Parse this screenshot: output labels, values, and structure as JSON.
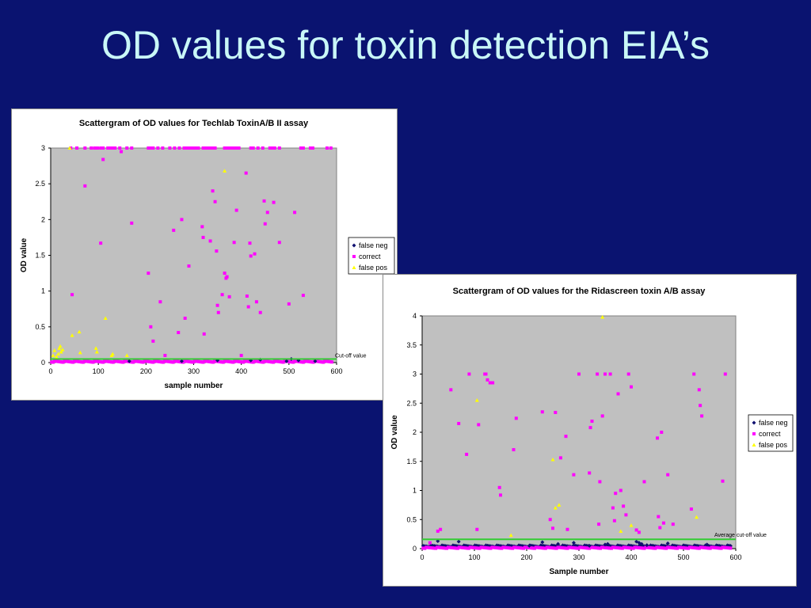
{
  "slide": {
    "title": "OD values for toxin detection EIA’s"
  },
  "chart_data": [
    {
      "type": "scatter",
      "title": "Scattergram of OD values for Techlab ToxinA/B II assay",
      "xlabel": "sample number",
      "ylabel": "OD value",
      "xlim": [
        0,
        600
      ],
      "ylim": [
        0,
        3
      ],
      "xticks": [
        0,
        100,
        200,
        300,
        400,
        500,
        600
      ],
      "yticks": [
        0,
        0.5,
        1,
        1.5,
        2,
        2.5,
        3
      ],
      "grid": false,
      "plot_background": "#c0c0c0",
      "legend_position": "right",
      "cutoff": {
        "label": "Cut-off value",
        "value": 0.05,
        "color": "#33cc33"
      },
      "series": [
        {
          "name": "false neg",
          "color": "#101070",
          "marker": "diamond",
          "x": [
            165,
            275,
            350,
            420,
            440,
            495,
            505,
            520,
            555
          ],
          "y": [
            0.02,
            0.02,
            0.03,
            0.03,
            0.04,
            0.02,
            0.05,
            0.03,
            0.02
          ]
        },
        {
          "name": "correct",
          "color": "#ff00ff",
          "marker": "square",
          "x": [
            42,
            55,
            72,
            85,
            92,
            98,
            105,
            110,
            120,
            125,
            130,
            135,
            145,
            160,
            170,
            205,
            210,
            215,
            225,
            235,
            250,
            260,
            270,
            280,
            285,
            290,
            295,
            300,
            305,
            310,
            320,
            325,
            330,
            335,
            340,
            345,
            365,
            370,
            375,
            380,
            385,
            390,
            395,
            420,
            425,
            435,
            445,
            460,
            465,
            470,
            480,
            525,
            530,
            545,
            550,
            580,
            588,
            45,
            72,
            105,
            110,
            148,
            170,
            180,
            205,
            210,
            215,
            230,
            240,
            258,
            268,
            275,
            282,
            290,
            318,
            320,
            322,
            335,
            340,
            345,
            348,
            350,
            352,
            360,
            365,
            368,
            370,
            375,
            385,
            390,
            400,
            410,
            412,
            415,
            418,
            420,
            428,
            432,
            440,
            448,
            450,
            455,
            468,
            480,
            500,
            512,
            530
          ],
          "y": [
            3,
            3,
            3,
            3,
            3,
            3,
            3,
            3,
            3,
            3,
            3,
            3,
            3,
            3,
            3,
            3,
            3,
            3,
            3,
            3,
            3,
            3,
            3,
            3,
            3,
            3,
            3,
            3,
            3,
            3,
            3,
            3,
            3,
            3,
            3,
            3,
            3,
            3,
            3,
            3,
            3,
            3,
            3,
            3,
            3,
            3,
            3,
            3,
            3,
            3,
            3,
            3,
            3,
            3,
            3,
            3,
            3,
            0.95,
            2.47,
            1.67,
            2.84,
            2.95,
            1.95,
            0.02,
            1.25,
            0.5,
            0.3,
            0.85,
            0.1,
            1.85,
            0.42,
            2.0,
            0.62,
            1.35,
            1.9,
            1.75,
            0.4,
            1.7,
            2.4,
            2.25,
            1.56,
            0.8,
            0.7,
            0.95,
            1.25,
            1.18,
            1.2,
            0.92,
            1.68,
            2.13,
            0.1,
            2.65,
            0.93,
            0.78,
            1.67,
            1.49,
            1.52,
            0.85,
            0.7,
            2.26,
            1.94,
            2.1,
            2.24,
            1.68,
            0.82,
            2.1,
            0.94
          ],
          "extra_near_zero": "dense band of correct values along OD ≈ 0 for all samples"
        },
        {
          "name": "false pos",
          "color": "#ffff00",
          "marker": "triangle",
          "x": [
            5,
            8,
            12,
            16,
            18,
            20,
            22,
            25,
            40,
            45,
            60,
            62,
            95,
            97,
            115,
            128,
            130,
            160,
            365
          ],
          "y": [
            0.1,
            0.17,
            0.08,
            0.12,
            0.2,
            0.23,
            0.15,
            0.18,
            3.0,
            0.38,
            0.43,
            0.14,
            0.2,
            0.15,
            0.62,
            0.1,
            0.12,
            0.1,
            2.68
          ]
        }
      ]
    },
    {
      "type": "scatter",
      "title": "Scattergram of OD values for the Ridascreen toxin A/B assay",
      "xlabel": "Sample number",
      "ylabel": "OD value",
      "xlim": [
        0,
        600
      ],
      "ylim": [
        0,
        4
      ],
      "xticks": [
        0,
        100,
        200,
        300,
        400,
        500,
        600
      ],
      "yticks": [
        0,
        0.5,
        1,
        1.5,
        2,
        2.5,
        3,
        3.5,
        4
      ],
      "grid": false,
      "plot_background": "#c0c0c0",
      "legend_position": "right",
      "cutoff": {
        "label": "Average cut-off value",
        "value": 0.16,
        "color": "#33cc33"
      },
      "series": [
        {
          "name": "false neg",
          "color": "#101070",
          "marker": "diamond",
          "x": [
            30,
            70,
            205,
            230,
            260,
            290,
            320,
            350,
            355,
            410,
            415,
            420,
            430,
            470,
            545
          ],
          "y": [
            0.13,
            0.12,
            0.05,
            0.11,
            0.08,
            0.1,
            0.05,
            0.07,
            0.08,
            0.12,
            0.1,
            0.08,
            0.06,
            0.09,
            0.07
          ],
          "extra_near_zero": "dense band of false neg values just above OD 0"
        },
        {
          "name": "correct",
          "color": "#ff00ff",
          "marker": "square",
          "x": [
            15,
            30,
            35,
            55,
            70,
            85,
            90,
            105,
            108,
            120,
            122,
            125,
            130,
            135,
            148,
            150,
            175,
            180,
            230,
            245,
            250,
            255,
            265,
            275,
            278,
            290,
            300,
            320,
            322,
            325,
            335,
            338,
            340,
            345,
            350,
            360,
            365,
            368,
            370,
            375,
            380,
            385,
            390,
            395,
            400,
            410,
            415,
            425,
            450,
            452,
            455,
            458,
            462,
            470,
            480,
            515,
            520,
            530,
            532,
            535,
            575,
            580
          ],
          "y": [
            0.1,
            0.3,
            0.33,
            2.73,
            2.15,
            1.62,
            3.0,
            0.33,
            2.13,
            3.0,
            3.0,
            2.9,
            2.85,
            2.85,
            1.05,
            0.92,
            1.7,
            2.24,
            2.35,
            0.5,
            0.35,
            2.34,
            1.56,
            1.93,
            0.33,
            1.27,
            3.0,
            1.3,
            2.08,
            2.19,
            3.0,
            0.42,
            1.15,
            2.28,
            3.0,
            3.0,
            0.7,
            0.48,
            0.95,
            2.66,
            1.0,
            0.73,
            0.58,
            3.0,
            2.78,
            0.32,
            0.28,
            1.15,
            1.9,
            0.55,
            0.36,
            2.0,
            0.44,
            1.27,
            0.42,
            0.68,
            3.0,
            2.73,
            2.46,
            2.28,
            1.16,
            3.0
          ],
          "extra_near_zero": "dense band of correct values along OD ≈ 0 for all samples"
        },
        {
          "name": "false pos",
          "color": "#ffff00",
          "marker": "triangle",
          "x": [
            105,
            170,
            250,
            255,
            262,
            345,
            380,
            400,
            525
          ],
          "y": [
            2.55,
            0.23,
            1.53,
            0.7,
            0.75,
            3.98,
            0.3,
            0.4,
            0.54
          ]
        }
      ]
    }
  ]
}
